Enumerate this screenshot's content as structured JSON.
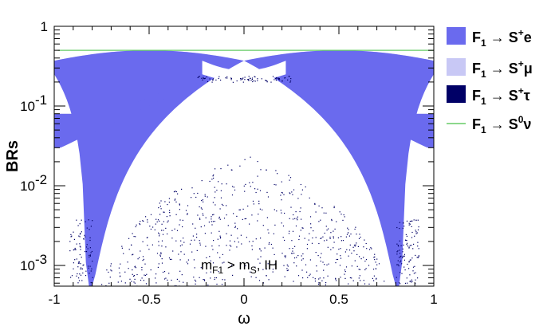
{
  "chart_data": {
    "type": "scatter",
    "xlabel": "ω",
    "ylabel": "BRs",
    "xlim": [
      -1,
      1
    ],
    "ylim": [
      0.00055,
      1.0
    ],
    "yscale": "log",
    "grid": false,
    "legend_position": "right",
    "x_ticks": [
      "-1",
      "-0.5",
      "0",
      "0.5",
      "1"
    ],
    "y_ticks": [
      {
        "value": 1,
        "base": "1",
        "exp": ""
      },
      {
        "value": 0.1,
        "base": "10",
        "exp": "-1"
      },
      {
        "value": 0.01,
        "base": "10",
        "exp": "-2"
      },
      {
        "value": 0.001,
        "base": "10",
        "exp": "-3"
      }
    ],
    "annotation": {
      "m": "m",
      "sub1": "F1",
      "mid": " > m",
      "sub2": "S",
      "tail": ", IH"
    },
    "series": [
      {
        "name": "F1 → S+e",
        "color": "#6a6aee",
        "kind": "band",
        "label_parts": {
          "main": "F",
          "sub": "1",
          "arrow": " → S",
          "sup": "+",
          "tail": "e"
        },
        "upper_max": 0.5,
        "upper_min": 0.37,
        "lower_max": 0.37,
        "lower_min": 0.00055
      },
      {
        "name": "F1 → S+μ",
        "color": "#c8c8f5",
        "kind": "band",
        "label_parts": {
          "main": "F",
          "sub": "1",
          "arrow": " → S",
          "sup": "+",
          "tail": "μ"
        },
        "upper_max": 0.5,
        "upper_min": 0.37,
        "lower_max": 0.37,
        "lower_min": 0.00055
      },
      {
        "name": "F1 → S+τ",
        "color": "#000066",
        "kind": "scatter",
        "label_parts": {
          "main": "F",
          "sub": "1",
          "arrow": " → S",
          "sup": "+",
          "tail": "τ"
        },
        "peak": 0.025
      },
      {
        "name": "F1 → S0ν",
        "color": "#66cc66",
        "kind": "line",
        "label_parts": {
          "main": "F",
          "sub": "1",
          "arrow": " → S",
          "sup": "0",
          "tail": "ν"
        },
        "value": 0.5
      }
    ]
  }
}
